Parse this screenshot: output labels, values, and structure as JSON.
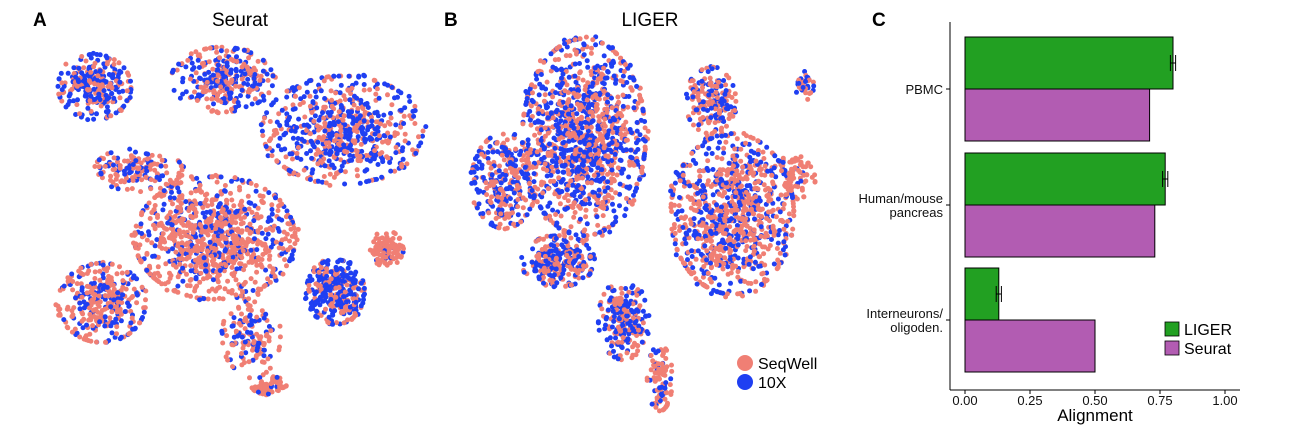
{
  "panels": {
    "a": {
      "letter": "A",
      "title": "Seurat"
    },
    "b": {
      "letter": "B",
      "title": "LIGER"
    },
    "c": {
      "letter": "C"
    }
  },
  "scatter_legend": [
    {
      "label": "SeqWell",
      "color": "#f07f74"
    },
    {
      "label": "10X",
      "color": "#1f3ff2"
    }
  ],
  "colors": {
    "seqwell": "#f07f74",
    "tenx": "#1f3ff2",
    "liger": "#22a022",
    "seurat": "#b25cb2"
  },
  "chart_data": [
    {
      "type": "scatter",
      "panel": "A",
      "title": "Seurat",
      "series": [
        {
          "name": "SeqWell",
          "color": "#f07f74"
        },
        {
          "name": "10X",
          "color": "#1f3ff2"
        }
      ],
      "clusters": [
        {
          "cx": 0.1,
          "cy": 0.13,
          "rx": 0.1,
          "ry": 0.09,
          "n": 260,
          "mix": 0.55
        },
        {
          "cx": 0.45,
          "cy": 0.11,
          "rx": 0.14,
          "ry": 0.09,
          "n": 320,
          "mix": 0.5
        },
        {
          "cx": 0.78,
          "cy": 0.25,
          "rx": 0.22,
          "ry": 0.15,
          "n": 620,
          "mix": 0.55
        },
        {
          "cx": 0.22,
          "cy": 0.36,
          "rx": 0.12,
          "ry": 0.06,
          "n": 160,
          "mix": 0.35
        },
        {
          "cx": 0.43,
          "cy": 0.55,
          "rx": 0.22,
          "ry": 0.17,
          "n": 900,
          "mix": 0.25
        },
        {
          "cx": 0.12,
          "cy": 0.73,
          "rx": 0.12,
          "ry": 0.11,
          "n": 320,
          "mix": 0.4
        },
        {
          "cx": 0.53,
          "cy": 0.82,
          "rx": 0.08,
          "ry": 0.12,
          "n": 140,
          "mix": 0.35
        },
        {
          "cx": 0.76,
          "cy": 0.7,
          "rx": 0.08,
          "ry": 0.09,
          "n": 320,
          "mix": 0.6
        },
        {
          "cx": 0.9,
          "cy": 0.58,
          "rx": 0.045,
          "ry": 0.05,
          "n": 120,
          "mix": 0.05
        },
        {
          "cx": 0.58,
          "cy": 0.96,
          "rx": 0.05,
          "ry": 0.025,
          "n": 60,
          "mix": 0.05
        }
      ]
    },
    {
      "type": "scatter",
      "panel": "B",
      "title": "LIGER",
      "series": [
        {
          "name": "SeqWell",
          "color": "#f07f74"
        },
        {
          "name": "10X",
          "color": "#1f3ff2"
        }
      ],
      "clusters": [
        {
          "cx": 0.32,
          "cy": 0.28,
          "rx": 0.17,
          "ry": 0.27,
          "n": 1200,
          "mix": 0.5
        },
        {
          "cx": 0.1,
          "cy": 0.4,
          "rx": 0.09,
          "ry": 0.13,
          "n": 280,
          "mix": 0.5
        },
        {
          "cx": 0.25,
          "cy": 0.62,
          "rx": 0.1,
          "ry": 0.07,
          "n": 260,
          "mix": 0.45
        },
        {
          "cx": 0.43,
          "cy": 0.78,
          "rx": 0.07,
          "ry": 0.11,
          "n": 220,
          "mix": 0.55
        },
        {
          "cx": 0.53,
          "cy": 0.94,
          "rx": 0.035,
          "ry": 0.09,
          "n": 90,
          "mix": 0.2
        },
        {
          "cx": 0.73,
          "cy": 0.49,
          "rx": 0.17,
          "ry": 0.22,
          "n": 900,
          "mix": 0.4
        },
        {
          "cx": 0.67,
          "cy": 0.18,
          "rx": 0.07,
          "ry": 0.09,
          "n": 180,
          "mix": 0.45
        },
        {
          "cx": 0.93,
          "cy": 0.14,
          "rx": 0.025,
          "ry": 0.04,
          "n": 40,
          "mix": 0.45
        },
        {
          "cx": 0.9,
          "cy": 0.39,
          "rx": 0.06,
          "ry": 0.06,
          "n": 80,
          "mix": 0.1
        }
      ]
    },
    {
      "type": "bar",
      "panel": "C",
      "orientation": "horizontal",
      "categories": [
        "PBMC",
        "Human/mouse\npancreas",
        "Interneurons/\noligoden."
      ],
      "xlabel": "Alignment",
      "ylabel": "",
      "xlim": [
        0,
        1
      ],
      "xticks": [
        "0.00",
        "0.25",
        "0.50",
        "0.75",
        "1.00"
      ],
      "series": [
        {
          "name": "LIGER",
          "color": "#22a022",
          "values": [
            0.8,
            0.77,
            0.13
          ],
          "errors": [
            0.01,
            0.01,
            0.01
          ]
        },
        {
          "name": "Seurat",
          "color": "#b25cb2",
          "values": [
            0.71,
            0.73,
            0.5
          ]
        }
      ],
      "legend_position": "bottom-right"
    }
  ]
}
